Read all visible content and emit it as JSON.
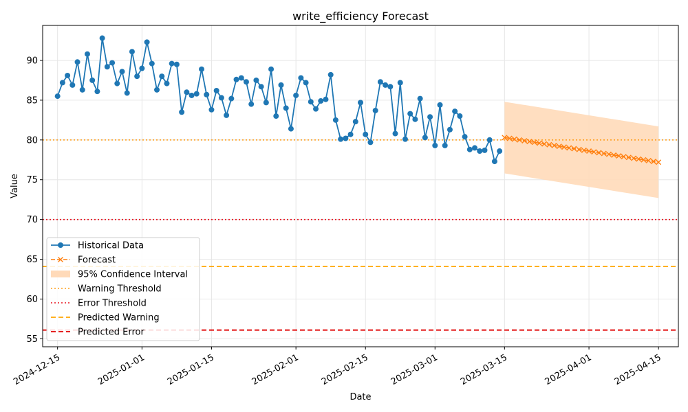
{
  "chart_data": {
    "type": "line",
    "title": "write_efficiency Forecast",
    "xlabel": "Date",
    "ylabel": "Value",
    "xlim": [
      "2024-12-12",
      "2025-04-19"
    ],
    "ylim": [
      54.0,
      94.4
    ],
    "xticks": [
      "2024-12-15",
      "2025-01-01",
      "2025-01-15",
      "2025-02-01",
      "2025-02-15",
      "2025-03-01",
      "2025-03-15",
      "2025-04-01",
      "2025-04-15"
    ],
    "yticks": [
      "55",
      "60",
      "65",
      "70",
      "75",
      "80",
      "85",
      "90"
    ],
    "grid": true,
    "legend_position": "lower-left",
    "historical": {
      "name": "Historical Data",
      "color": "#1f77b4",
      "start_date": "2024-12-15",
      "values": [
        85.5,
        87.2,
        88.1,
        86.9,
        89.8,
        86.3,
        90.8,
        87.5,
        86.1,
        92.8,
        89.2,
        89.7,
        87.1,
        88.6,
        85.9,
        91.1,
        88.0,
        89.0,
        92.3,
        89.6,
        86.3,
        88.0,
        87.1,
        89.6,
        89.5,
        83.5,
        86.0,
        85.6,
        85.8,
        88.9,
        85.7,
        83.8,
        86.2,
        85.3,
        83.1,
        85.2,
        87.6,
        87.8,
        87.3,
        84.5,
        87.5,
        86.7,
        84.7,
        88.9,
        83.0,
        86.9,
        84.0,
        81.4,
        85.6,
        87.8,
        87.2,
        84.8,
        83.9,
        84.9,
        85.1,
        88.2,
        82.5,
        80.1,
        80.2,
        80.7,
        82.3,
        84.7,
        80.7,
        79.7,
        83.7,
        87.3,
        86.9,
        86.7,
        80.8,
        87.2,
        80.1,
        83.3,
        82.6,
        85.2,
        80.3,
        82.9,
        79.3,
        84.4,
        79.3,
        81.3,
        83.6,
        83.0,
        80.4,
        78.8,
        79.0,
        78.6,
        78.7,
        80.0,
        77.3,
        78.6
      ]
    },
    "forecast": {
      "name": "Forecast",
      "color": "#ff7f0e",
      "start_date": "2025-03-15",
      "values": [
        80.3,
        80.2,
        80.1,
        80.0,
        79.9,
        79.8,
        79.7,
        79.6,
        79.5,
        79.4,
        79.3,
        79.2,
        79.1,
        79.0,
        78.9,
        78.8,
        78.7,
        78.6,
        78.5,
        78.4,
        78.3,
        78.2,
        78.1,
        78.0,
        77.9,
        77.8,
        77.7,
        77.6,
        77.5,
        77.4,
        77.3,
        77.2
      ]
    },
    "confidence_interval": {
      "name": "95% Confidence Interval",
      "color": "#ffdab9",
      "upper_start": 84.8,
      "upper_end": 81.7,
      "lower_start": 75.8,
      "lower_end": 72.7
    },
    "thresholds": [
      {
        "name": "Warning Threshold",
        "value": 80,
        "color": "#ff9f1c",
        "style": "dotted"
      },
      {
        "name": "Error Threshold",
        "value": 70,
        "color": "#e8121f",
        "style": "dotted"
      },
      {
        "name": "Predicted Warning",
        "value": 64.1,
        "color": "#ffa500",
        "style": "dashed"
      },
      {
        "name": "Predicted Error",
        "value": 56.1,
        "color": "#e00000",
        "style": "dashed"
      }
    ]
  }
}
